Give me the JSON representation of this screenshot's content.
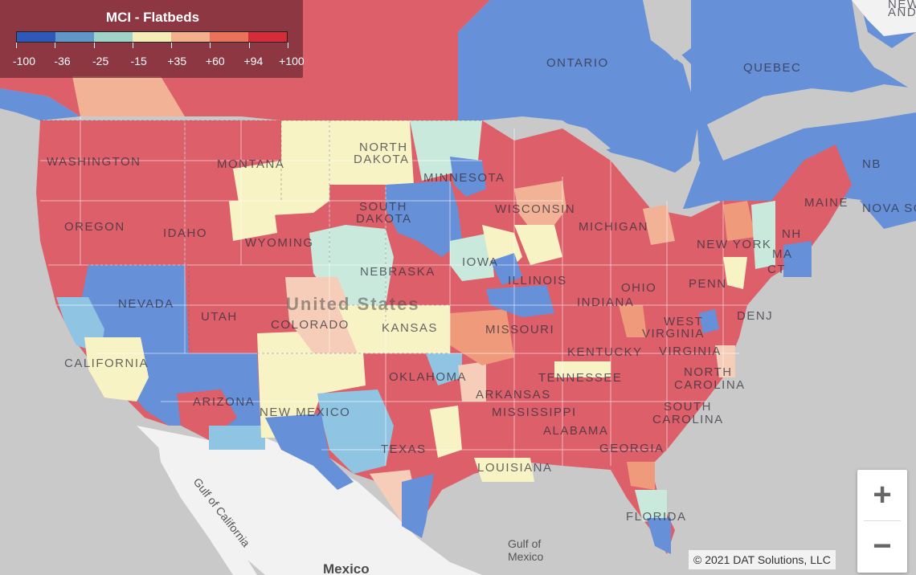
{
  "legend": {
    "title": "MCI - Flatbeds",
    "colors": [
      "#2e59b8",
      "#5e97c8",
      "#9fd3c8",
      "#f3eeb8",
      "#f3b08e",
      "#e8735a",
      "#d42c3a"
    ],
    "labels": [
      "-100",
      "-36",
      "-25",
      "-15",
      "+35",
      "+60",
      "+94",
      "+100"
    ]
  },
  "palette": {
    "red": "#dc5f6a",
    "blue": "#6690d8",
    "yellow": "#f8f3c4",
    "lightblue": "#8fc5e2",
    "teal": "#c9e9dc",
    "peach": "#f2b295",
    "orange": "#ee9a7b",
    "lightpeach": "#f6cdb8",
    "land": "#f2f2f2",
    "water": "#c9c9c9"
  },
  "map_labels": {
    "ontario": "ONTARIO",
    "quebec": "QUEBEC",
    "nb": "NB",
    "nova_scotia": "NOVA SC",
    "new_and": "NEW\nAND",
    "washington": "WASHINGTON",
    "oregon": "OREGON",
    "idaho": "IDAHO",
    "montana": "MONTANA",
    "north_dakota_1": "NORTH",
    "north_dakota_2": "DAKOTA",
    "south_dakota_1": "SOUTH",
    "south_dakota_2": "DAKOTA",
    "minnesota": "MINNESOTA",
    "wyoming": "WYOMING",
    "nebraska": "NEBRASKA",
    "iowa": "IOWA",
    "wisconsin": "WISCONSIN",
    "michigan": "MICHIGAN",
    "nevada": "NEVADA",
    "utah": "UTAH",
    "colorado": "COLORADO",
    "kansas": "KANSAS",
    "california": "CALIFORNIA",
    "arizona": "ARIZONA",
    "new_mexico": "NEW MEXICO",
    "oklahoma": "OKLAHOMA",
    "texas": "TEXAS",
    "illinois": "ILLINOIS",
    "indiana": "INDIANA",
    "ohio": "OHIO",
    "missouri": "MISSOURI",
    "kentucky": "KENTUCKY",
    "tennessee": "TENNESSEE",
    "arkansas": "ARKANSAS",
    "mississippi": "MISSISSIPPI",
    "alabama": "ALABAMA",
    "georgia": "GEORGIA",
    "louisiana": "LOUISIANA",
    "florida": "FLORIDA",
    "west_virginia_1": "WEST",
    "west_virginia_2": "VIRGINIA",
    "virginia": "VIRGINIA",
    "north_carolina_1": "NORTH",
    "north_carolina_2": "CAROLINA",
    "south_carolina_1": "SOUTH",
    "south_carolina_2": "CAROLINA",
    "penn": "PENN",
    "new_york": "NEW YORK",
    "maine": "MAINE",
    "nh": "NH",
    "ma": "MA",
    "ct": "CT",
    "denj": "DENJ",
    "united_states": "United States",
    "mexico": "Mexico",
    "gulf_of_mexico_1": "Gulf of",
    "gulf_of_mexico_2": "Mexico",
    "gulf_of_california": "Gulf of California"
  },
  "zoom": {
    "in_label": "+",
    "out_label": "−"
  },
  "credit": "© 2021 DAT Solutions, LLC"
}
